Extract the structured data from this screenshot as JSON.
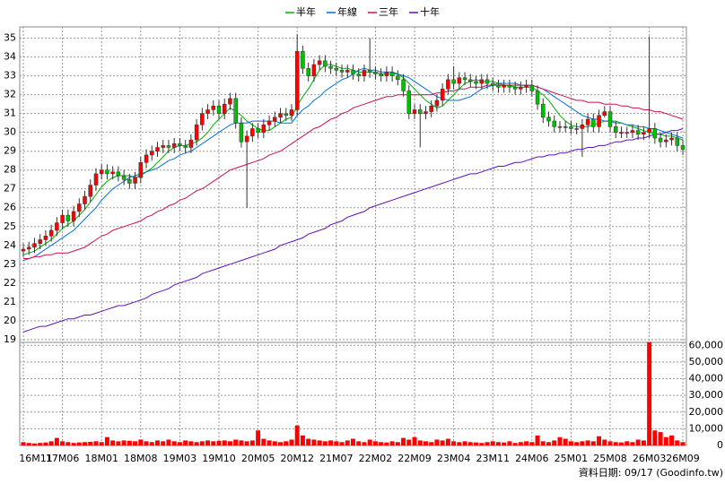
{
  "chart_data": {
    "type": "candlestick",
    "categories": [
      "16M11",
      null,
      null,
      null,
      null,
      null,
      null,
      "17M06",
      null,
      null,
      null,
      null,
      null,
      null,
      "18M01",
      null,
      null,
      null,
      null,
      null,
      null,
      "18M08",
      null,
      null,
      null,
      null,
      null,
      null,
      "19M03",
      null,
      null,
      null,
      null,
      null,
      null,
      "19M10",
      null,
      null,
      null,
      null,
      null,
      null,
      "20M05",
      null,
      null,
      null,
      null,
      null,
      null,
      "20M12",
      null,
      null,
      null,
      null,
      null,
      null,
      "21M07",
      null,
      null,
      null,
      null,
      null,
      null,
      "22M02",
      null,
      null,
      null,
      null,
      null,
      null,
      "22M09",
      null,
      null,
      null,
      null,
      null,
      null,
      "23M04",
      null,
      null,
      null,
      null,
      null,
      null,
      "23M11",
      null,
      null,
      null,
      null,
      null,
      null,
      "24M06",
      null,
      null,
      null,
      null,
      null,
      null,
      "25M01",
      null,
      null,
      null,
      null,
      null,
      null,
      "25M08",
      null,
      null,
      null,
      null,
      null,
      null,
      "26M03",
      null,
      null,
      null,
      null,
      null,
      "26M09"
    ],
    "ylim": [
      18.85,
      35.6
    ],
    "yticks": [
      19,
      20,
      21,
      22,
      23,
      24,
      25,
      26,
      27,
      28,
      29,
      30,
      31,
      32,
      33,
      34,
      35
    ],
    "grid": true,
    "up_color": "#ff0000",
    "down_color": "#00c000",
    "open": [
      23.7,
      23.8,
      23.9,
      24.1,
      24.3,
      24.5,
      24.8,
      25.2,
      25.6,
      25.3,
      25.8,
      26.2,
      26.6,
      27.2,
      27.8,
      28.0,
      27.8,
      27.9,
      27.7,
      27.5,
      27.3,
      27.6,
      28.4,
      28.8,
      29.0,
      29.2,
      29.3,
      29.2,
      29.4,
      29.3,
      29.2,
      29.6,
      30.4,
      31.0,
      31.2,
      31.4,
      31.0,
      31.5,
      31.8,
      30.5,
      29.5,
      29.8,
      30.2,
      30.0,
      30.4,
      30.6,
      30.8,
      31.0,
      30.9,
      31.2,
      34.3,
      33.4,
      33.0,
      33.6,
      33.8,
      33.5,
      33.4,
      33.3,
      33.2,
      33.3,
      33.1,
      33.0,
      33.3,
      33.2,
      33.1,
      33.0,
      33.2,
      33.0,
      32.8,
      32.2,
      31.0,
      31.2,
      31.0,
      31.1,
      31.4,
      31.7,
      32.3,
      32.8,
      32.6,
      32.9,
      32.8,
      32.7,
      32.6,
      32.8,
      32.6,
      32.5,
      32.4,
      32.5,
      32.4,
      32.3,
      32.4,
      32.5,
      32.2,
      31.5,
      30.8,
      30.6,
      30.3,
      30.3,
      30.3,
      30.2,
      30.2,
      30.4,
      30.7,
      30.3,
      30.9,
      31.1,
      30.3,
      30.0,
      30.0,
      30.0,
      30.1,
      29.9,
      30.0,
      30.2,
      29.7,
      29.5,
      29.6,
      29.7,
      29.3
    ],
    "high": [
      24.1,
      24.2,
      24.4,
      24.6,
      24.8,
      25.1,
      25.5,
      25.9,
      25.9,
      26.1,
      26.5,
      26.9,
      27.5,
      28.1,
      28.3,
      28.3,
      28.2,
      28.2,
      28.0,
      27.8,
      27.9,
      28.7,
      29.1,
      29.3,
      29.5,
      29.6,
      29.6,
      29.7,
      29.7,
      29.6,
      29.9,
      30.7,
      31.3,
      31.5,
      31.7,
      31.7,
      31.8,
      32.1,
      32.1,
      30.8,
      30.1,
      30.5,
      30.5,
      30.7,
      30.9,
      31.1,
      31.3,
      31.3,
      31.5,
      35.2,
      34.6,
      33.7,
      33.9,
      34.1,
      34.1,
      33.8,
      33.7,
      33.6,
      33.6,
      33.6,
      33.4,
      33.6,
      35.0,
      33.5,
      33.4,
      33.5,
      33.5,
      33.3,
      33.1,
      32.5,
      31.5,
      31.5,
      31.4,
      31.7,
      32.0,
      32.6,
      33.1,
      33.5,
      33.2,
      33.2,
      33.1,
      33.0,
      33.1,
      33.1,
      32.9,
      32.8,
      32.8,
      32.8,
      32.7,
      32.7,
      32.8,
      32.8,
      32.5,
      31.8,
      31.1,
      30.9,
      30.6,
      30.6,
      30.6,
      30.5,
      30.7,
      31.0,
      31.0,
      31.2,
      31.4,
      31.4,
      30.6,
      30.3,
      30.3,
      30.4,
      30.4,
      30.3,
      35.1,
      30.5,
      30.0,
      29.9,
      30.0,
      30.0,
      29.6
    ],
    "low": [
      23.4,
      23.5,
      23.6,
      23.8,
      24.0,
      24.2,
      24.5,
      24.9,
      25.0,
      25.0,
      25.5,
      25.9,
      26.3,
      26.9,
      27.5,
      27.5,
      27.5,
      27.4,
      27.2,
      27.0,
      27.0,
      27.3,
      28.1,
      28.5,
      28.7,
      28.9,
      28.9,
      28.9,
      29.0,
      28.9,
      28.9,
      29.3,
      30.1,
      30.7,
      30.9,
      30.7,
      30.7,
      31.2,
      30.2,
      29.2,
      26.0,
      29.5,
      29.7,
      29.7,
      30.1,
      30.3,
      30.5,
      30.6,
      30.6,
      30.9,
      33.1,
      32.7,
      32.7,
      33.3,
      33.2,
      33.1,
      33.0,
      32.9,
      32.9,
      32.8,
      32.7,
      32.7,
      32.9,
      32.8,
      32.7,
      32.7,
      32.7,
      32.5,
      31.9,
      30.7,
      30.7,
      29.2,
      30.7,
      30.8,
      31.1,
      31.4,
      32.0,
      32.3,
      32.3,
      32.5,
      32.4,
      32.3,
      32.3,
      32.3,
      32.2,
      32.1,
      32.1,
      32.1,
      32.0,
      32.0,
      32.1,
      31.9,
      31.2,
      30.5,
      30.3,
      30.0,
      30.0,
      30.0,
      29.9,
      29.9,
      28.7,
      30.0,
      30.0,
      30.0,
      30.8,
      30.0,
      29.7,
      29.7,
      29.7,
      29.7,
      29.6,
      29.6,
      29.7,
      29.4,
      29.2,
      29.2,
      29.3,
      29.0,
      28.8
    ],
    "close": [
      23.8,
      23.9,
      24.1,
      24.3,
      24.5,
      24.8,
      25.2,
      25.6,
      25.3,
      25.8,
      26.2,
      26.6,
      27.2,
      27.8,
      28.0,
      27.8,
      27.9,
      27.7,
      27.5,
      27.3,
      27.6,
      28.4,
      28.8,
      29.0,
      29.2,
      29.3,
      29.2,
      29.4,
      29.3,
      29.2,
      29.6,
      30.4,
      31.0,
      31.2,
      31.4,
      31.0,
      31.5,
      31.8,
      30.5,
      29.5,
      29.8,
      30.2,
      30.0,
      30.4,
      30.6,
      30.8,
      31.0,
      30.9,
      31.2,
      34.3,
      33.4,
      33.0,
      33.6,
      33.8,
      33.5,
      33.4,
      33.3,
      33.2,
      33.3,
      33.1,
      33.0,
      33.3,
      33.2,
      33.1,
      33.0,
      33.2,
      33.0,
      32.8,
      32.2,
      31.0,
      31.2,
      31.0,
      31.1,
      31.4,
      31.7,
      32.3,
      32.8,
      32.6,
      32.9,
      32.8,
      32.7,
      32.6,
      32.8,
      32.6,
      32.5,
      32.4,
      32.5,
      32.4,
      32.3,
      32.4,
      32.5,
      32.2,
      31.5,
      30.8,
      30.6,
      30.3,
      30.3,
      30.3,
      30.2,
      30.2,
      30.4,
      30.7,
      30.3,
      30.9,
      31.1,
      30.3,
      30.0,
      30.0,
      30.0,
      30.1,
      29.9,
      30.0,
      30.2,
      29.7,
      29.5,
      29.6,
      29.7,
      29.3,
      29.1
    ],
    "series": [
      {
        "name": "半年",
        "color": "#00b000",
        "values": [
          23.5,
          23.6,
          23.7,
          23.9,
          24.1,
          24.3,
          24.6,
          24.9,
          25.1,
          25.3,
          25.6,
          25.9,
          26.3,
          26.7,
          27.1,
          27.4,
          27.6,
          27.7,
          27.7,
          27.7,
          27.6,
          27.7,
          27.9,
          28.1,
          28.4,
          28.7,
          29.0,
          29.2,
          29.3,
          29.3,
          29.4,
          29.5,
          29.7,
          30.0,
          30.4,
          30.7,
          31.0,
          31.3,
          31.1,
          30.9,
          30.6,
          30.4,
          30.2,
          30.1,
          30.1,
          30.3,
          30.5,
          30.7,
          30.8,
          31.4,
          31.9,
          32.3,
          32.8,
          33.3,
          33.6,
          33.6,
          33.5,
          33.4,
          33.4,
          33.3,
          33.2,
          33.2,
          33.2,
          33.2,
          33.1,
          33.1,
          33.1,
          33.1,
          32.9,
          32.6,
          32.3,
          32.0,
          31.7,
          31.5,
          31.3,
          31.4,
          31.7,
          32.0,
          32.3,
          32.6,
          32.7,
          32.8,
          32.7,
          32.7,
          32.7,
          32.6,
          32.5,
          32.5,
          32.4,
          32.4,
          32.4,
          32.4,
          32.2,
          32.0,
          31.7,
          31.3,
          30.9,
          30.6,
          30.4,
          30.3,
          30.3,
          30.3,
          30.4,
          30.5,
          30.6,
          30.6,
          30.6,
          30.5,
          30.4,
          30.3,
          30.2,
          30.1,
          30.0,
          29.9,
          29.9,
          29.8,
          29.8,
          29.7,
          29.6
        ]
      },
      {
        "name": "年線",
        "color": "#0070e0",
        "values": [
          23.2,
          23.3,
          23.4,
          23.6,
          23.8,
          24.0,
          24.2,
          24.4,
          24.6,
          24.8,
          25.1,
          25.4,
          25.7,
          26.0,
          26.4,
          26.7,
          27.0,
          27.2,
          27.4,
          27.6,
          27.7,
          27.8,
          27.9,
          28.0,
          28.1,
          28.3,
          28.5,
          28.6,
          28.8,
          28.9,
          29.0,
          29.2,
          29.4,
          29.6,
          29.8,
          30.0,
          30.2,
          30.4,
          30.5,
          30.5,
          30.5,
          30.6,
          30.6,
          30.6,
          30.6,
          30.6,
          30.5,
          30.5,
          30.5,
          30.9,
          31.2,
          31.4,
          31.7,
          31.9,
          32.2,
          32.4,
          32.6,
          32.8,
          32.9,
          33.1,
          33.3,
          33.4,
          33.3,
          33.3,
          33.2,
          33.2,
          33.2,
          33.1,
          33.0,
          32.9,
          32.7,
          32.5,
          32.3,
          32.1,
          31.9,
          31.8,
          31.7,
          31.7,
          31.7,
          31.8,
          31.9,
          32.1,
          32.3,
          32.4,
          32.5,
          32.6,
          32.6,
          32.6,
          32.6,
          32.5,
          32.5,
          32.5,
          32.4,
          32.3,
          32.1,
          31.9,
          31.7,
          31.5,
          31.3,
          31.1,
          30.9,
          30.8,
          30.7,
          30.7,
          30.6,
          30.6,
          30.5,
          30.5,
          30.4,
          30.4,
          30.3,
          30.3,
          30.2,
          30.2,
          30.1,
          30.0,
          29.9,
          29.8,
          29.7
        ]
      },
      {
        "name": "三年",
        "color": "#d0104c",
        "values": [
          23.3,
          23.3,
          23.4,
          23.4,
          23.5,
          23.5,
          23.6,
          23.6,
          23.6,
          23.7,
          23.8,
          23.9,
          24.1,
          24.3,
          24.5,
          24.6,
          24.8,
          24.9,
          25.0,
          25.1,
          25.2,
          25.3,
          25.5,
          25.6,
          25.8,
          25.9,
          26.1,
          26.2,
          26.4,
          26.5,
          26.7,
          26.9,
          27.0,
          27.2,
          27.4,
          27.6,
          27.8,
          28.0,
          28.1,
          28.2,
          28.3,
          28.4,
          28.5,
          28.6,
          28.8,
          28.9,
          29.0,
          29.2,
          29.4,
          29.6,
          29.8,
          30.0,
          30.2,
          30.3,
          30.5,
          30.7,
          30.8,
          31.0,
          31.1,
          31.3,
          31.4,
          31.5,
          31.6,
          31.7,
          31.8,
          31.9,
          31.9,
          32.0,
          32.0,
          32.0,
          32.0,
          32.0,
          32.0,
          32.0,
          32.1,
          32.1,
          32.2,
          32.2,
          32.3,
          32.3,
          32.4,
          32.4,
          32.4,
          32.5,
          32.5,
          32.5,
          32.5,
          32.5,
          32.5,
          32.5,
          32.5,
          32.5,
          32.4,
          32.3,
          32.2,
          32.1,
          32.0,
          31.9,
          31.8,
          31.7,
          31.7,
          31.6,
          31.6,
          31.6,
          31.5,
          31.5,
          31.5,
          31.4,
          31.4,
          31.3,
          31.3,
          31.2,
          31.2,
          31.1,
          31.1,
          31.0,
          30.9,
          30.8,
          30.7
        ]
      },
      {
        "name": "十年",
        "color": "#6010c0",
        "values": [
          19.4,
          19.5,
          19.6,
          19.7,
          19.7,
          19.8,
          19.9,
          20.0,
          20.1,
          20.1,
          20.2,
          20.3,
          20.3,
          20.4,
          20.5,
          20.6,
          20.7,
          20.8,
          20.8,
          20.9,
          21.0,
          21.1,
          21.2,
          21.4,
          21.5,
          21.6,
          21.7,
          21.9,
          22.0,
          22.1,
          22.2,
          22.3,
          22.5,
          22.6,
          22.7,
          22.8,
          22.9,
          23.0,
          23.1,
          23.2,
          23.3,
          23.4,
          23.5,
          23.6,
          23.7,
          23.8,
          24.0,
          24.1,
          24.2,
          24.3,
          24.4,
          24.6,
          24.7,
          24.8,
          24.9,
          25.1,
          25.2,
          25.3,
          25.5,
          25.6,
          25.7,
          25.8,
          26.0,
          26.1,
          26.2,
          26.3,
          26.4,
          26.5,
          26.6,
          26.7,
          26.8,
          26.9,
          27.0,
          27.1,
          27.2,
          27.3,
          27.4,
          27.5,
          27.6,
          27.7,
          27.8,
          27.8,
          27.9,
          28.0,
          28.1,
          28.2,
          28.2,
          28.3,
          28.4,
          28.4,
          28.5,
          28.6,
          28.7,
          28.7,
          28.8,
          28.8,
          28.9,
          28.9,
          29.0,
          29.1,
          29.1,
          29.2,
          29.2,
          29.3,
          29.3,
          29.4,
          29.5,
          29.5,
          29.6,
          29.6,
          29.7,
          29.7,
          29.8,
          29.9,
          29.9,
          30.0,
          30.1,
          30.1,
          30.2
        ]
      }
    ],
    "volume": {
      "color": "#ff0000",
      "ylim": [
        0,
        65000
      ],
      "yticks": [
        0,
        {
          "value": 10000,
          "label": "10,000"
        },
        {
          "value": 20000,
          "label": "20,000"
        },
        {
          "value": 30000,
          "label": "30,000"
        },
        {
          "value": 40000,
          "label": "40,000"
        },
        {
          "value": 50000,
          "label": "50,000"
        },
        {
          "value": 60000,
          "label": "60,000"
        }
      ],
      "values": [
        2000,
        1500,
        1200,
        1500,
        1800,
        2500,
        4500,
        2500,
        2000,
        1500,
        1800,
        2000,
        2200,
        2500,
        2000,
        5000,
        3000,
        2500,
        3000,
        2800,
        2500,
        3500,
        2500,
        2000,
        3000,
        2500,
        3500,
        2500,
        2000,
        3000,
        2500,
        2000,
        2500,
        3000,
        2500,
        2800,
        3000,
        2500,
        3500,
        3000,
        2500,
        3000,
        9000,
        4000,
        3000,
        2500,
        2000,
        2500,
        3500,
        12000,
        6000,
        4000,
        3500,
        3000,
        2500,
        3000,
        2500,
        2000,
        3000,
        4000,
        2500,
        2000,
        3500,
        2500,
        2000,
        1800,
        2500,
        2000,
        4500,
        3500,
        5000,
        3000,
        2500,
        2000,
        3500,
        3000,
        4000,
        2500,
        2000,
        2500,
        2000,
        1800,
        1500,
        2000,
        2500,
        2000,
        1800,
        2500,
        1500,
        2000,
        2500,
        2000,
        6000,
        2500,
        2000,
        3000,
        5000,
        4000,
        2500,
        2000,
        2500,
        3000,
        2500,
        5500,
        3500,
        2500,
        2000,
        1800,
        2500,
        2000,
        3500,
        3000,
        62000,
        9000,
        8000,
        5000,
        6000,
        3000,
        2000
      ]
    },
    "footer": "資料日期: 09/17 (Goodinfo.tw)"
  }
}
